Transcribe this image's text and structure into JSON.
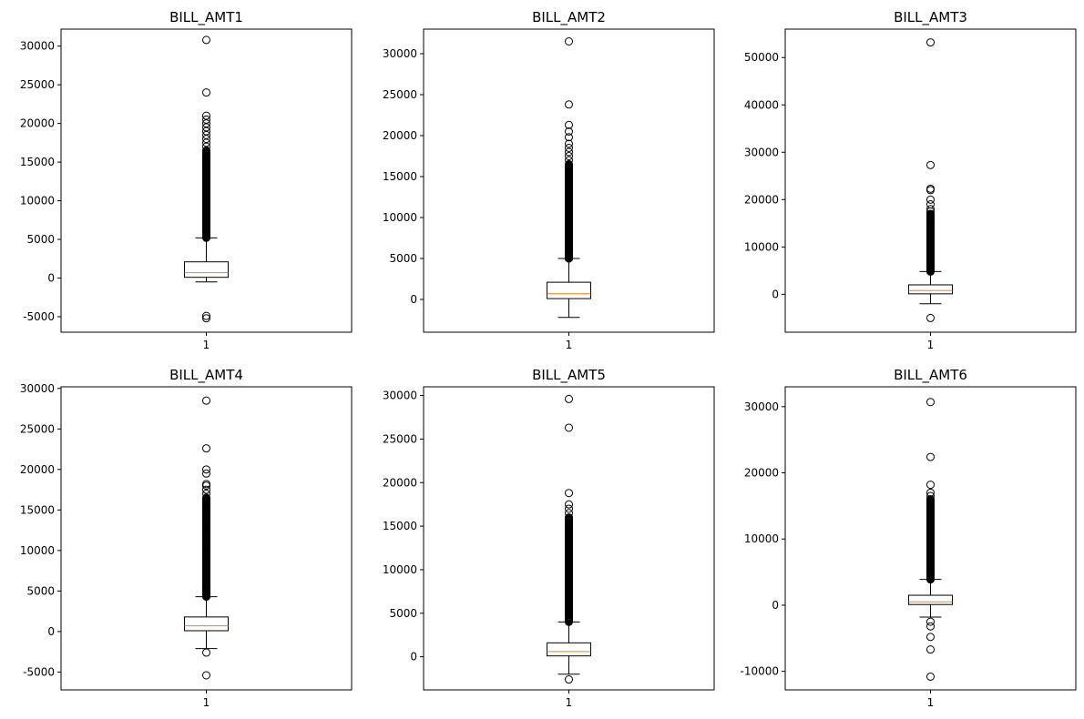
{
  "chart_data": [
    {
      "type": "box",
      "title": "BILL_AMT1",
      "categories": [
        "1"
      ],
      "ylim": [
        -7000,
        32200
      ],
      "yticks": [
        -5000,
        0,
        5000,
        10000,
        15000,
        20000,
        25000,
        30000
      ],
      "box": {
        "whisker_low": -500,
        "q1": 100,
        "median": 700,
        "q3": 2100,
        "whisker_high": 5200
      },
      "outliers_dense_range": [
        5200,
        16500
      ],
      "outliers": [
        17000,
        17500,
        18000,
        18500,
        19000,
        19500,
        20000,
        20500,
        21000,
        24000,
        30800,
        -4900,
        -5200
      ]
    },
    {
      "type": "box",
      "title": "BILL_AMT2",
      "categories": [
        "1"
      ],
      "ylim": [
        -4000,
        33000
      ],
      "yticks": [
        0,
        5000,
        10000,
        15000,
        20000,
        25000,
        30000
      ],
      "box": {
        "whisker_low": -2200,
        "q1": 100,
        "median": 700,
        "q3": 2100,
        "whisker_high": 5000
      },
      "outliers_dense_range": [
        5000,
        16500
      ],
      "outliers": [
        17000,
        17500,
        18000,
        18500,
        19000,
        19800,
        20500,
        21300,
        23800,
        31500
      ]
    },
    {
      "type": "box",
      "title": "BILL_AMT3",
      "categories": [
        "1"
      ],
      "ylim": [
        -8000,
        56000
      ],
      "yticks": [
        0,
        10000,
        20000,
        30000,
        40000,
        50000
      ],
      "box": {
        "whisker_low": -2000,
        "q1": 100,
        "median": 800,
        "q3": 2000,
        "whisker_high": 4800
      },
      "outliers_dense_range": [
        4800,
        17000
      ],
      "outliers": [
        17500,
        18000,
        19000,
        20000,
        22000,
        22300,
        27300,
        53200,
        -5000
      ]
    },
    {
      "type": "box",
      "title": "BILL_AMT4",
      "categories": [
        "1"
      ],
      "ylim": [
        -7200,
        30200
      ],
      "yticks": [
        -5000,
        0,
        5000,
        10000,
        15000,
        20000,
        25000,
        30000
      ],
      "box": {
        "whisker_low": -2100,
        "q1": 100,
        "median": 700,
        "q3": 1800,
        "whisker_high": 4300
      },
      "outliers_dense_range": [
        4300,
        16500
      ],
      "outliers": [
        17000,
        17500,
        18000,
        18200,
        19500,
        20000,
        22600,
        28500,
        -2600,
        -5400
      ]
    },
    {
      "type": "box",
      "title": "BILL_AMT5",
      "categories": [
        "1"
      ],
      "ylim": [
        -3800,
        31000
      ],
      "yticks": [
        0,
        5000,
        10000,
        15000,
        20000,
        25000,
        30000
      ],
      "box": {
        "whisker_low": -2000,
        "q1": 100,
        "median": 600,
        "q3": 1600,
        "whisker_high": 4000
      },
      "outliers_dense_range": [
        4000,
        16000
      ],
      "outliers": [
        16500,
        17000,
        17500,
        18800,
        26300,
        29600,
        -2600
      ]
    },
    {
      "type": "box",
      "title": "BILL_AMT6",
      "categories": [
        "1"
      ],
      "ylim": [
        -12800,
        33000
      ],
      "yticks": [
        -10000,
        0,
        10000,
        20000,
        30000
      ],
      "box": {
        "whisker_low": -1800,
        "q1": 100,
        "median": 500,
        "q3": 1500,
        "whisker_high": 3900
      },
      "outliers_dense_range": [
        3900,
        16000
      ],
      "outliers": [
        16500,
        17000,
        18200,
        22400,
        30700,
        -2500,
        -3200,
        -4800,
        -6700,
        -10800
      ]
    }
  ]
}
